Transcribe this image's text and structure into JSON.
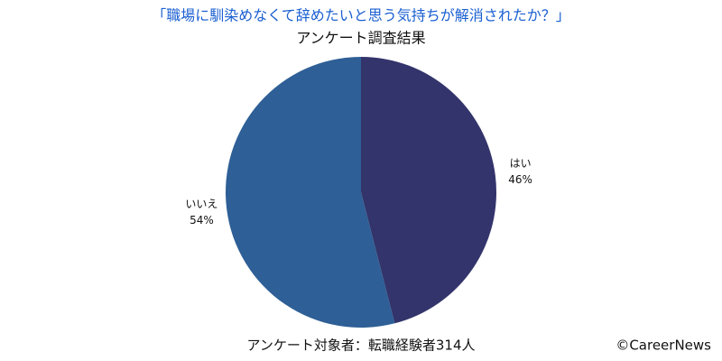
{
  "chart_data": {
    "type": "pie",
    "title": "「職場に馴染めなくて辞めたいと思う気持ちが解消されたか？」",
    "subtitle": "アンケート調査結果",
    "categories": [
      "はい",
      "いいえ"
    ],
    "values": [
      46,
      54
    ],
    "value_labels": [
      "46%",
      "54%"
    ],
    "colors": [
      "#33346b",
      "#2e5f96"
    ],
    "footnote": "アンケート対象者：転職経験者314人",
    "credit": "©CareerNews"
  }
}
